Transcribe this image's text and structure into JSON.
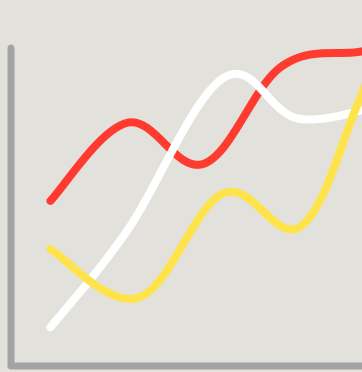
{
  "chart_data": {
    "type": "line",
    "title": "",
    "xlabel": "",
    "ylabel": "",
    "grid": false,
    "legend": "none",
    "xlim": [
      0,
      10
    ],
    "ylim": [
      0,
      10
    ],
    "series": [
      {
        "color": "#ff3b30",
        "x": [
          1,
          3,
          5,
          7,
          9,
          10
        ],
        "y": [
          4.6,
          6.7,
          5.6,
          8.2,
          8.6,
          8.7
        ]
      },
      {
        "color": "#ffffff",
        "x": [
          1,
          3,
          5.5,
          7.5,
          10
        ],
        "y": [
          1.2,
          3.8,
          7.9,
          6.8,
          7.3
        ]
      },
      {
        "color": "#ffe34a",
        "x": [
          1,
          3.3,
          5.5,
          7.5,
          9,
          10
        ],
        "y": [
          3.3,
          2.0,
          4.8,
          3.9,
          7.2,
          10.0
        ]
      }
    ],
    "axis_color": "#a3a3a3",
    "background": "#e3e1dc"
  }
}
